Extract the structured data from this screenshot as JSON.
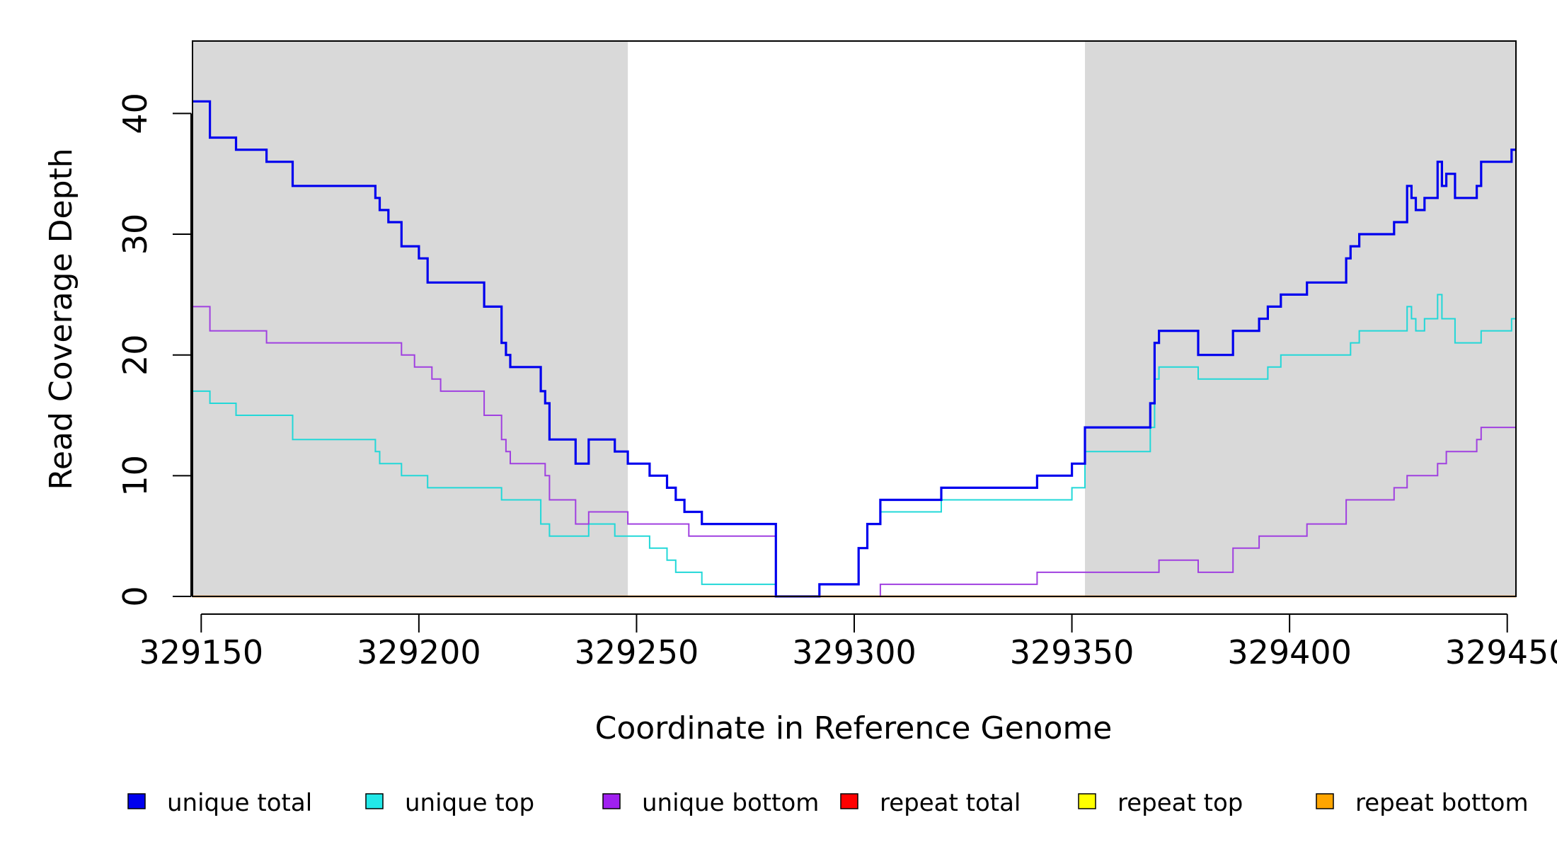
{
  "chart_data": {
    "type": "line",
    "title": "",
    "xlabel": "Coordinate in Reference Genome",
    "ylabel": "Read Coverage Depth",
    "xlim": [
      329148,
      329452
    ],
    "ylim": [
      0,
      46
    ],
    "x_ticks": [
      329150,
      329200,
      329250,
      329300,
      329350,
      329400,
      329450
    ],
    "x_tick_labels": [
      "329150",
      "329200",
      "329250",
      "329300",
      "329350",
      "329400",
      "329450"
    ],
    "y_ticks": [
      0,
      10,
      20,
      30,
      40
    ],
    "y_tick_labels": [
      "0",
      "10",
      "20",
      "30",
      "40"
    ],
    "shaded_regions": [
      [
        329148,
        329248
      ],
      [
        329353,
        329452
      ]
    ],
    "shade_color": "#d9d9d9",
    "legend_position": "bottom",
    "series": [
      {
        "name": "unique total",
        "color": "#0000ee",
        "steps": [
          [
            329148,
            41
          ],
          [
            329152,
            38
          ],
          [
            329158,
            37
          ],
          [
            329165,
            36
          ],
          [
            329171,
            34
          ],
          [
            329190,
            33
          ],
          [
            329191,
            32
          ],
          [
            329193,
            31
          ],
          [
            329196,
            29
          ],
          [
            329200,
            28
          ],
          [
            329202,
            26
          ],
          [
            329215,
            24
          ],
          [
            329219,
            21
          ],
          [
            329220,
            20
          ],
          [
            329221,
            19
          ],
          [
            329228,
            17
          ],
          [
            329229,
            16
          ],
          [
            329230,
            13
          ],
          [
            329236,
            11
          ],
          [
            329239,
            13
          ],
          [
            329245,
            12
          ],
          [
            329248,
            11
          ],
          [
            329253,
            10
          ],
          [
            329257,
            9
          ],
          [
            329259,
            8
          ],
          [
            329261,
            7
          ],
          [
            329265,
            6
          ],
          [
            329282,
            0
          ],
          [
            329292,
            1
          ],
          [
            329301,
            4
          ],
          [
            329303,
            6
          ],
          [
            329306,
            8
          ],
          [
            329320,
            9
          ],
          [
            329342,
            10
          ],
          [
            329350,
            11
          ],
          [
            329353,
            14
          ],
          [
            329368,
            16
          ],
          [
            329369,
            21
          ],
          [
            329370,
            22
          ],
          [
            329379,
            20
          ],
          [
            329387,
            22
          ],
          [
            329393,
            23
          ],
          [
            329395,
            24
          ],
          [
            329398,
            25
          ],
          [
            329404,
            26
          ],
          [
            329413,
            28
          ],
          [
            329414,
            29
          ],
          [
            329416,
            30
          ],
          [
            329424,
            31
          ],
          [
            329427,
            34
          ],
          [
            329428,
            33
          ],
          [
            329429,
            32
          ],
          [
            329431,
            33
          ],
          [
            329434,
            36
          ],
          [
            329435,
            34
          ],
          [
            329436,
            35
          ],
          [
            329438,
            33
          ],
          [
            329443,
            34
          ],
          [
            329444,
            36
          ],
          [
            329451,
            37
          ]
        ]
      },
      {
        "name": "unique top",
        "color": "#22d8d8",
        "steps": [
          [
            329148,
            17
          ],
          [
            329152,
            16
          ],
          [
            329158,
            15
          ],
          [
            329171,
            13
          ],
          [
            329190,
            12
          ],
          [
            329191,
            11
          ],
          [
            329196,
            10
          ],
          [
            329202,
            9
          ],
          [
            329219,
            8
          ],
          [
            329228,
            6
          ],
          [
            329230,
            5
          ],
          [
            329239,
            6
          ],
          [
            329245,
            5
          ],
          [
            329253,
            4
          ],
          [
            329257,
            3
          ],
          [
            329259,
            2
          ],
          [
            329265,
            1
          ],
          [
            329282,
            0
          ],
          [
            329292,
            1
          ],
          [
            329301,
            4
          ],
          [
            329303,
            6
          ],
          [
            329306,
            7
          ],
          [
            329320,
            8
          ],
          [
            329350,
            9
          ],
          [
            329353,
            12
          ],
          [
            329368,
            14
          ],
          [
            329369,
            18
          ],
          [
            329370,
            19
          ],
          [
            329379,
            18
          ],
          [
            329395,
            19
          ],
          [
            329398,
            20
          ],
          [
            329414,
            21
          ],
          [
            329416,
            22
          ],
          [
            329427,
            24
          ],
          [
            329428,
            23
          ],
          [
            329429,
            22
          ],
          [
            329431,
            23
          ],
          [
            329434,
            25
          ],
          [
            329435,
            23
          ],
          [
            329438,
            21
          ],
          [
            329444,
            22
          ],
          [
            329451,
            23
          ]
        ]
      },
      {
        "name": "unique bottom",
        "color": "#a040e0",
        "steps": [
          [
            329148,
            24
          ],
          [
            329152,
            22
          ],
          [
            329165,
            21
          ],
          [
            329196,
            20
          ],
          [
            329199,
            19
          ],
          [
            329203,
            18
          ],
          [
            329205,
            17
          ],
          [
            329215,
            15
          ],
          [
            329219,
            13
          ],
          [
            329220,
            12
          ],
          [
            329221,
            11
          ],
          [
            329229,
            10
          ],
          [
            329230,
            8
          ],
          [
            329236,
            6
          ],
          [
            329239,
            7
          ],
          [
            329248,
            6
          ],
          [
            329262,
            5
          ],
          [
            329282,
            0
          ],
          [
            329306,
            1
          ],
          [
            329342,
            2
          ],
          [
            329370,
            3
          ],
          [
            329379,
            2
          ],
          [
            329387,
            4
          ],
          [
            329393,
            5
          ],
          [
            329404,
            6
          ],
          [
            329413,
            8
          ],
          [
            329424,
            9
          ],
          [
            329427,
            10
          ],
          [
            329434,
            11
          ],
          [
            329436,
            12
          ],
          [
            329443,
            13
          ],
          [
            329444,
            14
          ],
          [
            329451,
            14
          ]
        ]
      },
      {
        "name": "repeat total",
        "color": "#ff0000",
        "steps": [
          [
            329148,
            0
          ],
          [
            329452,
            0
          ]
        ]
      },
      {
        "name": "repeat top",
        "color": "#ffff00",
        "steps": [
          [
            329148,
            0
          ],
          [
            329452,
            0
          ]
        ]
      },
      {
        "name": "repeat bottom",
        "color": "#ffa500",
        "steps": [
          [
            329148,
            0
          ],
          [
            329452,
            0
          ]
        ]
      }
    ],
    "legend": [
      {
        "name": "unique total",
        "color": "#0000ee"
      },
      {
        "name": "unique top",
        "color": "#22e8e8"
      },
      {
        "name": "unique bottom",
        "color": "#a020f0"
      },
      {
        "name": "repeat total",
        "color": "#ff0000"
      },
      {
        "name": "repeat top",
        "color": "#ffff00"
      },
      {
        "name": "repeat bottom",
        "color": "#ffa500"
      }
    ]
  }
}
